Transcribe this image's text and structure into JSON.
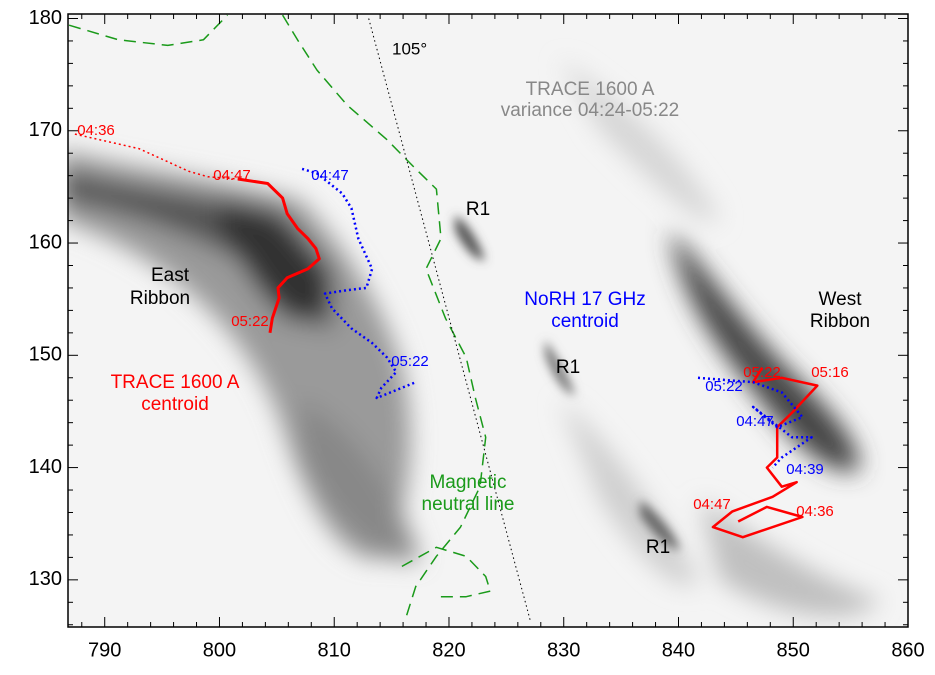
{
  "chart_data": {
    "type": "image-overlay",
    "xlim": [
      786.8,
      860
    ],
    "ylim": [
      125.8,
      180.4
    ],
    "xticks": [
      790,
      800,
      810,
      820,
      830,
      840,
      850,
      860
    ],
    "yticks": [
      130,
      140,
      150,
      160,
      170,
      180
    ],
    "series": [
      {
        "color": "#ff0000",
        "dash": "dotted",
        "width": 1.5,
        "x": [
          787.4,
          793.0,
          797.3,
          799.0,
          801.6
        ],
        "y": [
          169.7,
          168.4,
          166.4,
          165.9,
          165.7
        ]
      },
      {
        "color": "#ff0000",
        "dash": "solid",
        "width": 3,
        "x": [
          801.6,
          804.2,
          805.5,
          805.9,
          806.8,
          807.7,
          808.4,
          808.7,
          807.7,
          805.9,
          805.1,
          805.2,
          804.6,
          804.4
        ],
        "y": [
          165.7,
          165.3,
          164.0,
          162.6,
          161.3,
          160.4,
          159.5,
          158.6,
          157.7,
          156.9,
          156.0,
          155.1,
          153.3,
          152.0
        ]
      },
      {
        "color": "#0000ff",
        "dash": "dotted",
        "width": 2.5,
        "x": [
          807.2,
          808.5,
          810.7,
          811.5,
          812.1,
          813.3,
          812.8,
          811.1,
          809.2,
          809.8,
          811.5,
          813.3,
          814.6,
          815.4,
          814.1,
          813.7,
          817.1
        ],
        "y": [
          166.6,
          166.2,
          164.4,
          163.1,
          160.4,
          157.7,
          156.0,
          155.8,
          155.5,
          154.2,
          152.4,
          151.1,
          149.8,
          148.5,
          147.1,
          146.2,
          147.6
        ]
      },
      {
        "color": "#ff0000",
        "dash": "solid",
        "width": 2.5,
        "x": [
          847.3,
          846.5,
          849.0,
          852.1,
          849.9,
          848.6,
          848.6,
          847.7,
          849.0,
          850.3,
          848.2,
          844.7,
          843.0,
          845.6,
          850.8,
          847.7,
          845.2
        ],
        "y": [
          148.9,
          147.6,
          148.0,
          147.3,
          144.9,
          143.6,
          140.9,
          140.0,
          138.3,
          138.7,
          137.4,
          136.1,
          134.7,
          133.8,
          135.6,
          136.5,
          135.2
        ]
      },
      {
        "color": "#0000ff",
        "dash": "dotted",
        "width": 2.5,
        "x": [
          841.7,
          846.5,
          849.0,
          850.8,
          848.6,
          846.5,
          849.9,
          851.6,
          849.0,
          848.2
        ],
        "y": [
          148.0,
          147.6,
          146.7,
          144.5,
          143.6,
          145.4,
          142.7,
          142.7,
          140.9,
          140.0
        ]
      },
      {
        "color": "#1a9a1a",
        "dash": "dashed",
        "width": 1.5,
        "x": [
          786.9,
          791.2,
          795.5,
          798.6,
          800.7,
          null,
          805.5,
          806.8,
          808.5,
          811.1,
          814.6,
          817.1,
          818.9,
          819.3,
          818.0,
          819.7,
          821.5,
          822.3,
          823.2,
          822.7,
          821.0,
          818.9,
          817.1,
          816.3,
          null,
          815.9,
          818.9,
          821.5,
          823.2,
          823.6,
          821.5,
          818.9
        ],
        "y": [
          179.4,
          178.1,
          177.6,
          178.1,
          180.3,
          null,
          180.3,
          178.1,
          175.4,
          172.3,
          169.2,
          166.6,
          164.8,
          160.4,
          157.7,
          153.3,
          149.8,
          146.2,
          142.7,
          138.3,
          134.7,
          132.1,
          129.4,
          126.8,
          null,
          131.2,
          132.9,
          132.1,
          130.3,
          129.0,
          128.5,
          128.5
        ]
      },
      {
        "color": "#000000",
        "dash": "fine",
        "width": 1,
        "x": [
          813.0,
          827.1
        ],
        "y": [
          180.0,
          126.3
        ]
      }
    ],
    "annotations": [
      {
        "text": "105°",
        "color": "#000000"
      },
      {
        "text": "TRACE 1600 A",
        "color": "#888888"
      },
      {
        "text": "variance 04:24-05:22",
        "color": "#888888"
      },
      {
        "text": "04:36",
        "color": "#ff0000"
      },
      {
        "text": "04:47",
        "color": "#ff0000"
      },
      {
        "text": "04:47",
        "color": "#0000ff"
      },
      {
        "text": "R1",
        "color": "#000000"
      },
      {
        "text": "East",
        "color": "#000000"
      },
      {
        "text": "Ribbon",
        "color": "#000000"
      },
      {
        "text": "05:22",
        "color": "#ff0000"
      },
      {
        "text": "NoRH 17 GHz",
        "color": "#0000ff"
      },
      {
        "text": "centroid",
        "color": "#0000ff"
      },
      {
        "text": "West",
        "color": "#000000"
      },
      {
        "text": "Ribbon",
        "color": "#000000"
      },
      {
        "text": "05:22",
        "color": "#0000ff"
      },
      {
        "text": "R1",
        "color": "#000000"
      },
      {
        "text": "TRACE 1600 A",
        "color": "#ff0000"
      },
      {
        "text": "centroid",
        "color": "#ff0000"
      },
      {
        "text": "05:22",
        "color": "#ff0000"
      },
      {
        "text": "05:16",
        "color": "#ff0000"
      },
      {
        "text": "05:22",
        "color": "#0000ff"
      },
      {
        "text": "04:47",
        "color": "#0000ff"
      },
      {
        "text": "04:39",
        "color": "#0000ff"
      },
      {
        "text": "Magnetic",
        "color": "#1a9a1a"
      },
      {
        "text": "neutral line",
        "color": "#1a9a1a"
      },
      {
        "text": "04:47",
        "color": "#ff0000"
      },
      {
        "text": "04:36",
        "color": "#ff0000"
      },
      {
        "text": "R1",
        "color": "#000000"
      }
    ]
  }
}
